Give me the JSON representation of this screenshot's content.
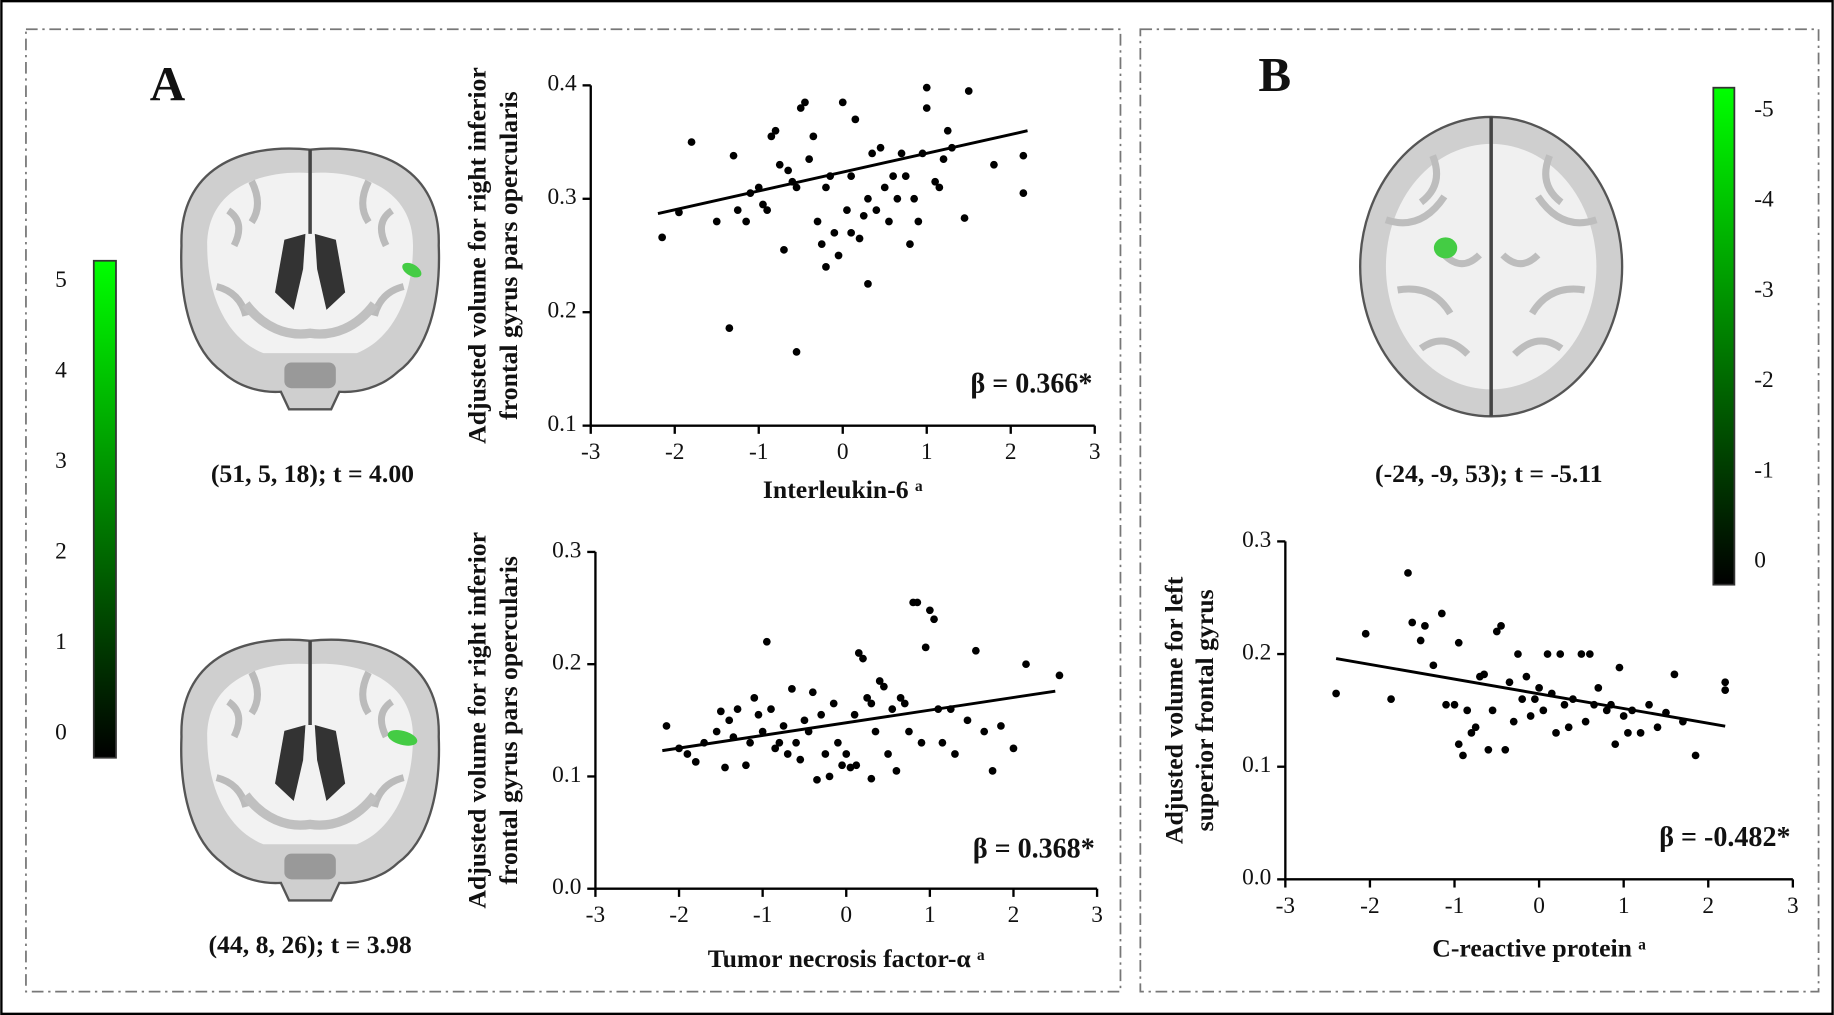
{
  "panels": [
    {
      "label": "A"
    },
    {
      "label": "B"
    }
  ],
  "brain_captions": [
    "(51, 5, 18); t = 4.00",
    "(44, 8, 26); t = 3.98",
    "(-24, -9, 53); t = -5.11"
  ],
  "colorbars": [
    {
      "lim": [
        -0.26,
        5.23
      ],
      "ticks": [
        0,
        1,
        2,
        3,
        4,
        5
      ],
      "colors": [
        "#000000",
        "#00ff00"
      ]
    },
    {
      "lim": [
        0.25,
        -5.26
      ],
      "ticks": [
        0,
        -1,
        -2,
        -3,
        -4,
        -5
      ],
      "colors": [
        "#000000",
        "#00ff00"
      ]
    }
  ],
  "chart_data": [
    {
      "type": "scatter",
      "color": "#000000",
      "xlabel": "Interleukin-6 ᵃ",
      "ylabel": [
        "Adjusted volume for right inferior",
        "frontal gyrus pars opercularis"
      ],
      "annotation": "β = 0.366*",
      "xlim": [
        -3,
        3
      ],
      "xticks": [
        -3,
        -2,
        -1,
        0,
        1,
        2,
        3
      ],
      "ylim": [
        0.1,
        0.4
      ],
      "yticks": [
        0.1,
        0.2,
        0.3,
        0.4
      ],
      "x": [
        -2.15,
        -1.95,
        -1.8,
        -1.5,
        -1.35,
        -1.3,
        -1.25,
        -1.15,
        -1.1,
        -1.0,
        -0.95,
        -0.9,
        -0.85,
        -0.8,
        -0.75,
        -0.7,
        -0.65,
        -0.6,
        -0.55,
        -0.55,
        -0.5,
        -0.45,
        -0.4,
        -0.35,
        -0.3,
        -0.25,
        -0.2,
        -0.15,
        -0.1,
        -0.05,
        0,
        0.05,
        0.1,
        0.15,
        0.2,
        0.25,
        0.3,
        0.3,
        0.35,
        0.4,
        0.45,
        0.5,
        0.55,
        0.6,
        0.65,
        0.7,
        0.75,
        0.8,
        0.85,
        0.9,
        0.95,
        1.0,
        1.0,
        1.1,
        1.15,
        1.2,
        1.25,
        1.3,
        1.45,
        1.5,
        1.8,
        2.15,
        2.15,
        -0.2,
        0.1
      ],
      "values": [
        0.266,
        0.288,
        0.35,
        0.28,
        0.186,
        0.338,
        0.29,
        0.28,
        0.305,
        0.31,
        0.295,
        0.29,
        0.355,
        0.36,
        0.33,
        0.255,
        0.325,
        0.315,
        0.165,
        0.31,
        0.38,
        0.385,
        0.335,
        0.355,
        0.28,
        0.26,
        0.24,
        0.32,
        0.27,
        0.25,
        0.385,
        0.29,
        0.32,
        0.37,
        0.265,
        0.285,
        0.225,
        0.3,
        0.34,
        0.29,
        0.345,
        0.31,
        0.28,
        0.32,
        0.3,
        0.34,
        0.32,
        0.26,
        0.3,
        0.28,
        0.34,
        0.38,
        0.398,
        0.315,
        0.31,
        0.335,
        0.36,
        0.345,
        0.283,
        0.395,
        0.33,
        0.338,
        0.305,
        0.31,
        0.27
      ],
      "fit": {
        "x": [
          -2.2,
          2.2
        ],
        "values": [
          0.287,
          0.36
        ]
      }
    },
    {
      "type": "scatter",
      "color": "#000000",
      "xlabel": "Tumor necrosis factor-α ᵃ",
      "ylabel": [
        "Adjusted volume for right inferior",
        "frontal gyrus pars opercularis"
      ],
      "annotation": "β = 0.368*",
      "xlim": [
        -3,
        3
      ],
      "xticks": [
        -3,
        -2,
        -1,
        0,
        1,
        2,
        3
      ],
      "ylim": [
        0,
        0.3
      ],
      "yticks": [
        {
          "value": 0,
          "label": "0.0"
        },
        0.1,
        0.2,
        0.3
      ],
      "x": [
        -2.15,
        -2.0,
        -1.9,
        -1.8,
        -1.7,
        -1.55,
        -1.5,
        -1.45,
        -1.4,
        -1.35,
        -1.3,
        -1.2,
        -1.15,
        -1.1,
        -1.05,
        -1.0,
        -0.95,
        -0.9,
        -0.85,
        -0.8,
        -0.75,
        -0.7,
        -0.65,
        -0.6,
        -0.55,
        -0.5,
        -0.45,
        -0.4,
        -0.35,
        -0.3,
        -0.25,
        -0.2,
        -0.15,
        -0.1,
        -0.05,
        0,
        0.05,
        0.1,
        0.12,
        0.15,
        0.2,
        0.25,
        0.3,
        0.3,
        0.35,
        0.4,
        0.45,
        0.5,
        0.55,
        0.6,
        0.65,
        0.7,
        0.75,
        0.8,
        0.85,
        0.9,
        0.95,
        1.0,
        1.05,
        1.1,
        1.15,
        1.25,
        1.3,
        1.45,
        1.55,
        1.65,
        1.75,
        1.85,
        2.0,
        2.15,
        2.55
      ],
      "values": [
        0.145,
        0.125,
        0.12,
        0.113,
        0.13,
        0.14,
        0.158,
        0.108,
        0.15,
        0.135,
        0.16,
        0.11,
        0.13,
        0.17,
        0.155,
        0.14,
        0.22,
        0.16,
        0.125,
        0.13,
        0.145,
        0.12,
        0.178,
        0.13,
        0.115,
        0.15,
        0.14,
        0.175,
        0.097,
        0.155,
        0.12,
        0.1,
        0.165,
        0.13,
        0.11,
        0.12,
        0.108,
        0.155,
        0.11,
        0.21,
        0.205,
        0.17,
        0.165,
        0.098,
        0.14,
        0.185,
        0.18,
        0.12,
        0.16,
        0.105,
        0.17,
        0.165,
        0.14,
        0.255,
        0.255,
        0.13,
        0.215,
        0.248,
        0.24,
        0.16,
        0.13,
        0.16,
        0.12,
        0.15,
        0.212,
        0.14,
        0.105,
        0.145,
        0.125,
        0.2,
        0.19
      ],
      "fit": {
        "x": [
          -2.2,
          2.5
        ],
        "values": [
          0.123,
          0.176
        ]
      }
    },
    {
      "type": "scatter",
      "color": "#000000",
      "xlabel": "C-reactive protein ᵃ",
      "ylabel": [
        "Adjusted volume for left",
        "superior frontal gyrus"
      ],
      "annotation": "β = -0.482*",
      "xlim": [
        -3,
        3
      ],
      "xticks": [
        -3,
        -2,
        -1,
        0,
        1,
        2,
        3
      ],
      "ylim": [
        0,
        0.3
      ],
      "yticks": [
        {
          "value": 0,
          "label": "0.0"
        },
        0.1,
        0.2,
        0.3
      ],
      "x": [
        -2.4,
        -2.05,
        -1.75,
        -1.55,
        -1.5,
        -1.4,
        -1.35,
        -1.25,
        -1.15,
        -1.1,
        -1.0,
        -0.95,
        -0.95,
        -0.9,
        -0.85,
        -0.8,
        -0.75,
        -0.7,
        -0.65,
        -0.6,
        -0.55,
        -0.5,
        -0.45,
        -0.4,
        -0.35,
        -0.3,
        -0.25,
        -0.2,
        -0.15,
        -0.1,
        -0.05,
        0,
        0.05,
        0.1,
        0.15,
        0.2,
        0.25,
        0.3,
        0.35,
        0.4,
        0.5,
        0.55,
        0.6,
        0.65,
        0.7,
        0.8,
        0.85,
        0.9,
        0.95,
        1.0,
        1.05,
        1.1,
        1.2,
        1.3,
        1.4,
        1.5,
        1.6,
        1.7,
        1.85,
        2.2,
        2.2
      ],
      "values": [
        0.165,
        0.218,
        0.16,
        0.272,
        0.228,
        0.212,
        0.225,
        0.19,
        0.236,
        0.155,
        0.155,
        0.21,
        0.12,
        0.11,
        0.15,
        0.13,
        0.135,
        0.18,
        0.182,
        0.115,
        0.15,
        0.22,
        0.225,
        0.115,
        0.175,
        0.14,
        0.2,
        0.16,
        0.18,
        0.145,
        0.16,
        0.17,
        0.15,
        0.2,
        0.165,
        0.13,
        0.2,
        0.155,
        0.135,
        0.16,
        0.2,
        0.14,
        0.2,
        0.155,
        0.17,
        0.15,
        0.155,
        0.12,
        0.188,
        0.145,
        0.13,
        0.15,
        0.13,
        0.155,
        0.135,
        0.148,
        0.182,
        0.14,
        0.11,
        0.175,
        0.168
      ],
      "fit": {
        "x": [
          -2.4,
          2.2
        ],
        "values": [
          0.196,
          0.136
        ]
      }
    }
  ]
}
